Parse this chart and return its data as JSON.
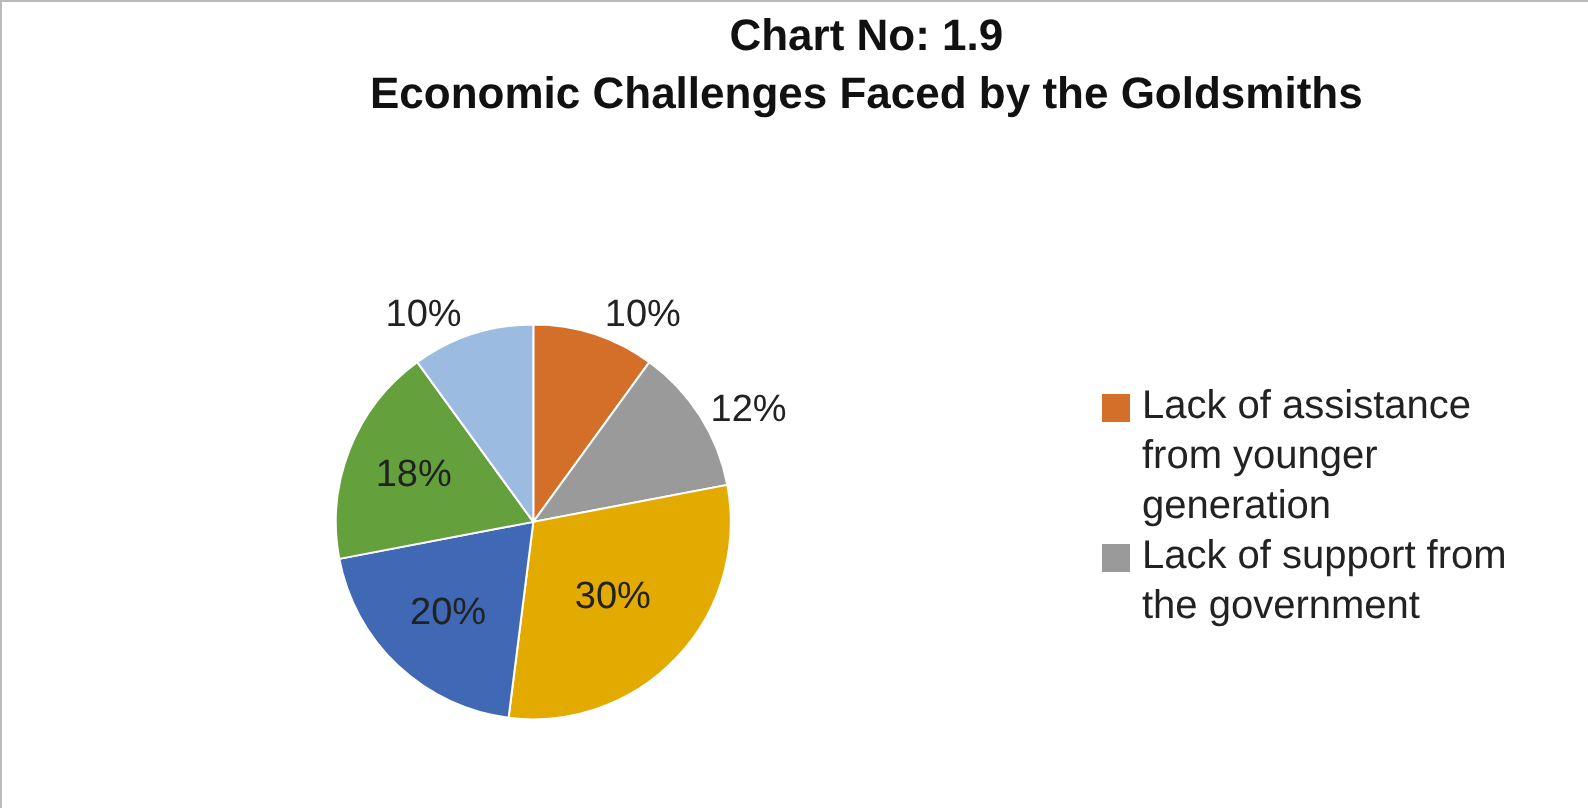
{
  "chart_data": {
    "type": "pie",
    "title": "Chart No: 1.9\nEconomic Challenges Faced by the Goldsmiths",
    "categories": [
      "Lack of assistance from younger generation",
      "Lack of support from the government",
      null,
      null,
      null,
      null
    ],
    "values": [
      10,
      12,
      30,
      20,
      18,
      10
    ],
    "colors": [
      "#d46f2a",
      "#9a9a9a",
      "#e3aa00",
      "#4068b4",
      "#64a03c",
      "#9bbbe0"
    ],
    "value_labels": [
      "10%",
      "12%",
      "30%",
      "20%",
      "18%",
      "10%"
    ],
    "legend": "right"
  }
}
